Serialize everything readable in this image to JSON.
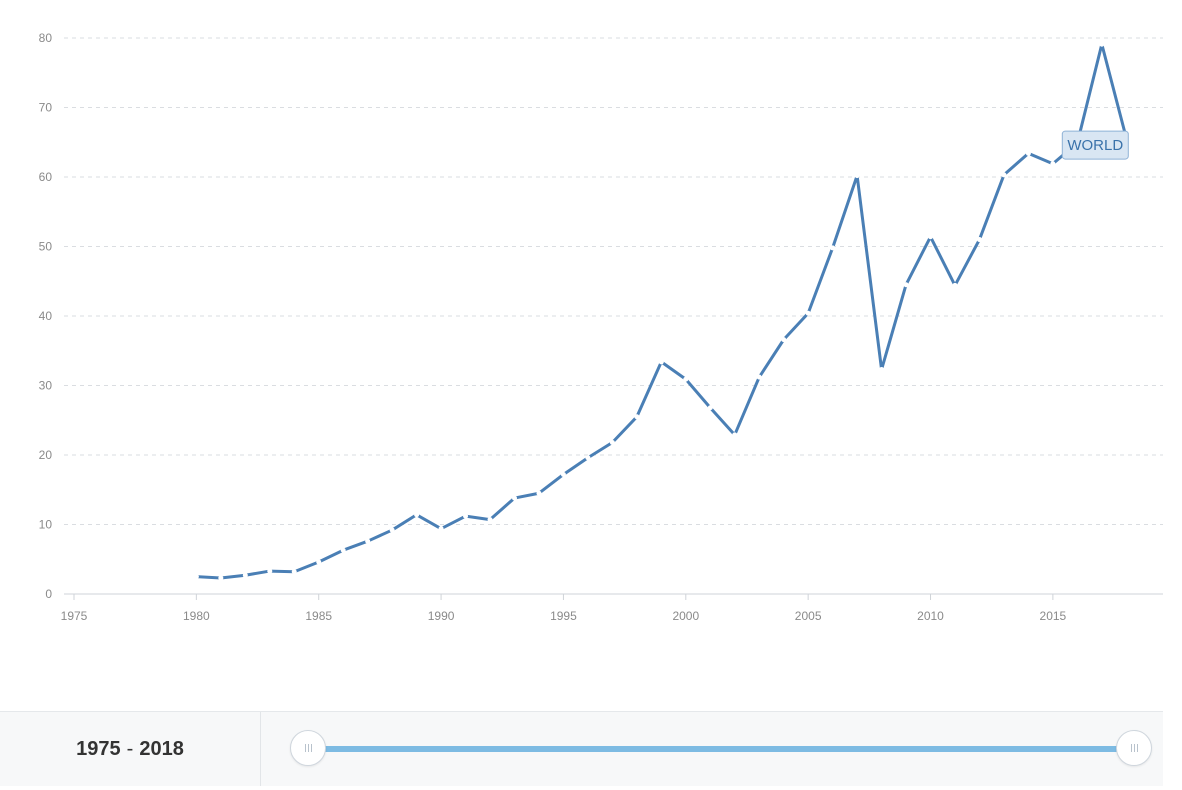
{
  "chart_data": {
    "type": "line",
    "title": "",
    "xlabel": "",
    "ylabel": "",
    "xlim": [
      1975,
      2019.5
    ],
    "ylim": [
      0,
      80
    ],
    "x_ticks": [
      1975,
      1980,
      1985,
      1990,
      1995,
      2000,
      2005,
      2010,
      2015
    ],
    "y_ticks": [
      0,
      10,
      20,
      30,
      40,
      50,
      60,
      70,
      80
    ],
    "grid": true,
    "series": [
      {
        "name": "WORLD",
        "color": "#4a7fb5",
        "x": [
          1980,
          1981,
          1982,
          1983,
          1984,
          1985,
          1986,
          1987,
          1988,
          1989,
          1990,
          1991,
          1992,
          1993,
          1994,
          1995,
          1996,
          1997,
          1998,
          1999,
          2000,
          2001,
          2002,
          2003,
          2004,
          2005,
          2006,
          2007,
          2008,
          2009,
          2010,
          2011,
          2012,
          2013,
          2014,
          2015,
          2016,
          2017,
          2018
        ],
        "values": [
          2.5,
          2.3,
          2.7,
          3.3,
          3.2,
          4.6,
          6.3,
          7.6,
          9.2,
          11.4,
          9.4,
          11.2,
          10.7,
          13.8,
          14.5,
          17.2,
          19.6,
          21.8,
          25.5,
          33.4,
          30.9,
          26.8,
          22.9,
          31.2,
          36.6,
          40.4,
          49.8,
          60.2,
          32.3,
          44.5,
          51.4,
          44.4,
          51.0,
          60.3,
          63.4,
          61.9,
          64.9,
          79.1,
          65.6
        ]
      }
    ],
    "legend": {
      "placement": "end-of-line",
      "label": "WORLD"
    }
  },
  "range_selector": {
    "start": "1975",
    "separator": "-",
    "end": "2018"
  }
}
